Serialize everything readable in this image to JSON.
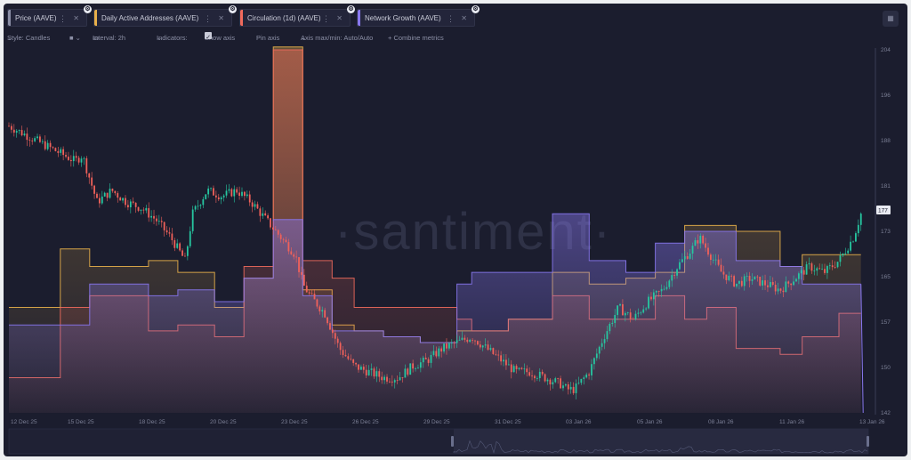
{
  "tabs": [
    {
      "label": "Price (AAVE)",
      "color": "#8b8fa6"
    },
    {
      "label": "Daily Active Addresses (AAVE)",
      "color": "#e8b04a"
    },
    {
      "label": "Circulation (1d) (AAVE)",
      "color": "#f06a5c"
    },
    {
      "label": "Network Growth (AAVE)",
      "color": "#8877ee"
    }
  ],
  "toolbar": {
    "style": "Style: Candles",
    "interval": "Interval: 2h",
    "indicators": "Indicators:",
    "show_axis": "Show axis",
    "pin_axis": "Pin axis",
    "axis_range": "Axis max/min: Auto/Auto",
    "combine": "+ Combine metrics"
  },
  "watermark": "·santiment·",
  "current_price": "177",
  "chart_data": {
    "type": "candlestick",
    "y_ticks": [
      "204",
      "196",
      "188",
      "181",
      "173",
      "165",
      "157",
      "150",
      "142"
    ],
    "ylim": [
      142,
      204
    ],
    "x_ticks": [
      "12 Dec 25",
      "15 Dec 25",
      "18 Dec 25",
      "20 Dec 25",
      "23 Dec 25",
      "26 Dec 25",
      "29 Dec 25",
      "31 Dec 25",
      "03 Jan 26",
      "05 Jan 26",
      "08 Jan 26",
      "11 Jan 26",
      "13 Jan 26"
    ],
    "price_path": [
      [
        0,
        191
      ],
      [
        3,
        189
      ],
      [
        6,
        187
      ],
      [
        9,
        185
      ],
      [
        10,
        186
      ],
      [
        12,
        178
      ],
      [
        14,
        180
      ],
      [
        16,
        178
      ],
      [
        18,
        177
      ],
      [
        20,
        175
      ],
      [
        22,
        172
      ],
      [
        24,
        168
      ],
      [
        25,
        176
      ],
      [
        27,
        180
      ],
      [
        29,
        179
      ],
      [
        31,
        180
      ],
      [
        33,
        178
      ],
      [
        35,
        175
      ],
      [
        37,
        172
      ],
      [
        39,
        169
      ],
      [
        40,
        164
      ],
      [
        41,
        162
      ],
      [
        43,
        159
      ],
      [
        45,
        153
      ],
      [
        47,
        150
      ],
      [
        49,
        149
      ],
      [
        51,
        148
      ],
      [
        53,
        148
      ],
      [
        55,
        150
      ],
      [
        57,
        151
      ],
      [
        59,
        153
      ],
      [
        61,
        154
      ],
      [
        63,
        155
      ],
      [
        65,
        153
      ],
      [
        67,
        151
      ],
      [
        69,
        149
      ],
      [
        71,
        149
      ],
      [
        73,
        148
      ],
      [
        75,
        147
      ],
      [
        76,
        146
      ],
      [
        77,
        146
      ],
      [
        79,
        149
      ],
      [
        81,
        155
      ],
      [
        83,
        160
      ],
      [
        85,
        158
      ],
      [
        87,
        161
      ],
      [
        89,
        163
      ],
      [
        91,
        167
      ],
      [
        93,
        170
      ],
      [
        94,
        172
      ],
      [
        95,
        170
      ],
      [
        97,
        166
      ],
      [
        99,
        164
      ],
      [
        101,
        165
      ],
      [
        103,
        164
      ],
      [
        105,
        163
      ],
      [
        107,
        165
      ],
      [
        109,
        167
      ],
      [
        111,
        166
      ],
      [
        113,
        168
      ],
      [
        114,
        170
      ],
      [
        115,
        172
      ],
      [
        116,
        176
      ]
    ],
    "series": [
      {
        "name": "Daily Active Addresses (AAVE)",
        "color": "#e8b04a",
        "steps": [
          [
            0,
            160
          ],
          [
            7,
            170
          ],
          [
            11,
            167
          ],
          [
            19,
            168
          ],
          [
            23,
            166
          ],
          [
            28,
            160
          ],
          [
            32,
            165
          ],
          [
            36,
            205
          ],
          [
            40,
            163
          ],
          [
            44,
            157
          ],
          [
            47,
            156
          ],
          [
            51,
            155
          ],
          [
            56,
            154
          ],
          [
            61,
            156
          ],
          [
            63,
            156
          ],
          [
            68,
            158
          ],
          [
            74,
            166
          ],
          [
            79,
            164
          ],
          [
            84,
            165
          ],
          [
            88,
            166
          ],
          [
            92,
            174
          ],
          [
            95,
            174
          ],
          [
            99,
            173
          ],
          [
            105,
            167
          ],
          [
            108,
            169
          ],
          [
            113,
            169
          ]
        ]
      },
      {
        "name": "Circulation (1d) (AAVE)",
        "color": "#f06a5c",
        "steps": [
          [
            0,
            148
          ],
          [
            7,
            160
          ],
          [
            11,
            162
          ],
          [
            19,
            156
          ],
          [
            23,
            157
          ],
          [
            28,
            155
          ],
          [
            32,
            167
          ],
          [
            36,
            204
          ],
          [
            40,
            168
          ],
          [
            44,
            165
          ],
          [
            47,
            160
          ],
          [
            51,
            160
          ],
          [
            56,
            160
          ],
          [
            61,
            158
          ],
          [
            63,
            156
          ],
          [
            68,
            158
          ],
          [
            74,
            162
          ],
          [
            79,
            158
          ],
          [
            84,
            158
          ],
          [
            88,
            162
          ],
          [
            92,
            158
          ],
          [
            95,
            160
          ],
          [
            99,
            153
          ],
          [
            105,
            152
          ],
          [
            108,
            155
          ],
          [
            113,
            159
          ]
        ]
      },
      {
        "name": "Network Growth (AAVE)",
        "color": "#8877ee",
        "steps": [
          [
            0,
            157
          ],
          [
            7,
            157
          ],
          [
            11,
            164
          ],
          [
            19,
            162
          ],
          [
            23,
            163
          ],
          [
            28,
            161
          ],
          [
            32,
            165
          ],
          [
            36,
            175
          ],
          [
            40,
            162
          ],
          [
            44,
            156
          ],
          [
            47,
            156
          ],
          [
            51,
            155
          ],
          [
            56,
            154
          ],
          [
            61,
            164
          ],
          [
            63,
            166
          ],
          [
            68,
            166
          ],
          [
            74,
            176
          ],
          [
            79,
            168
          ],
          [
            84,
            166
          ],
          [
            88,
            171
          ],
          [
            92,
            173
          ],
          [
            95,
            173
          ],
          [
            99,
            168
          ],
          [
            105,
            167
          ],
          [
            108,
            164
          ],
          [
            113,
            164
          ]
        ]
      }
    ]
  }
}
